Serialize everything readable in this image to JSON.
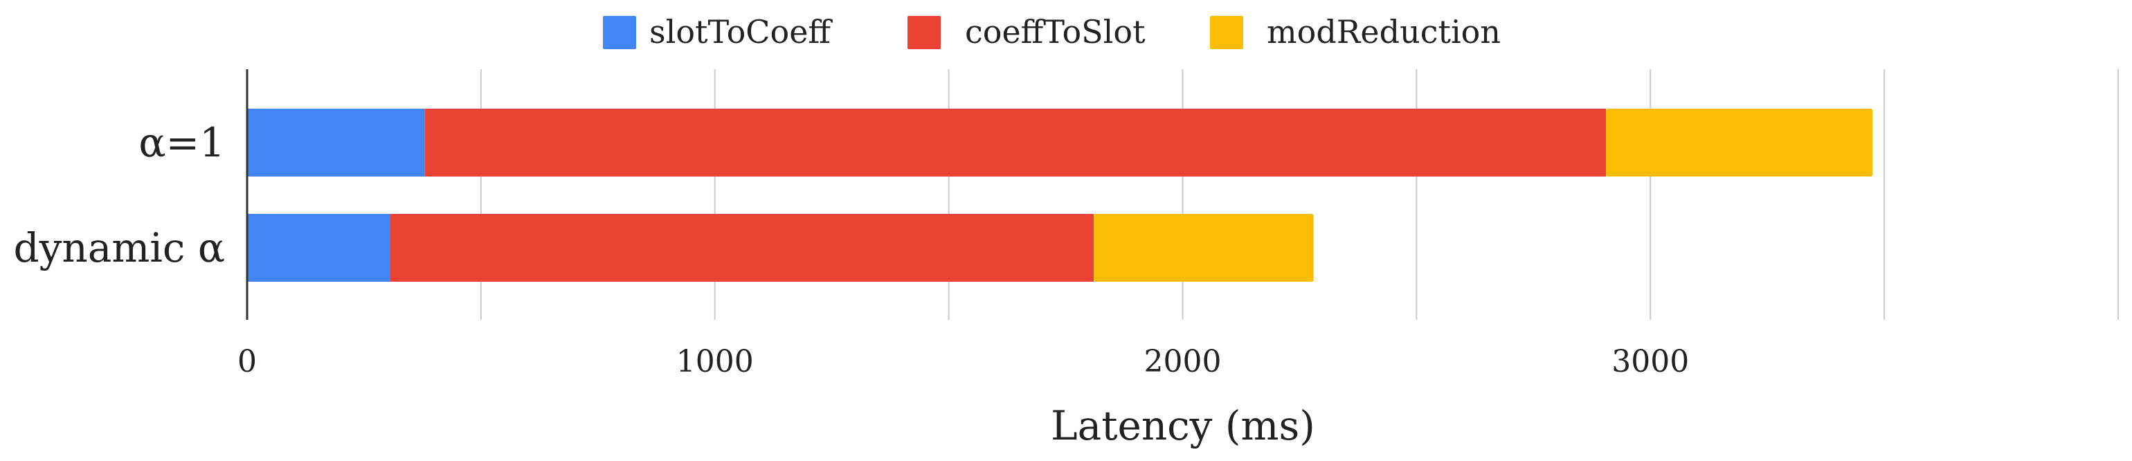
{
  "chart_data": {
    "type": "bar",
    "orientation": "horizontal",
    "stacked": true,
    "categories": [
      "α=1",
      "dynamic α"
    ],
    "series": [
      {
        "name": "slotToCoeff",
        "color": "#4285f4",
        "values": [
          380,
          305
        ]
      },
      {
        "name": "coeffToSlot",
        "color": "#ea4335",
        "values": [
          2525,
          1505
        ]
      },
      {
        "name": "modReduction",
        "color": "#fbbc04",
        "values": [
          570,
          470
        ]
      }
    ],
    "xlabel": "Latency (ms)",
    "ylabel": "",
    "xlim": [
      0,
      4000
    ],
    "xticks": [
      0,
      1000,
      2000,
      3000
    ],
    "gridlines": [
      500,
      1000,
      1500,
      2000,
      2500,
      3000,
      3500,
      4000
    ],
    "grid": true,
    "legend": "top-center"
  }
}
